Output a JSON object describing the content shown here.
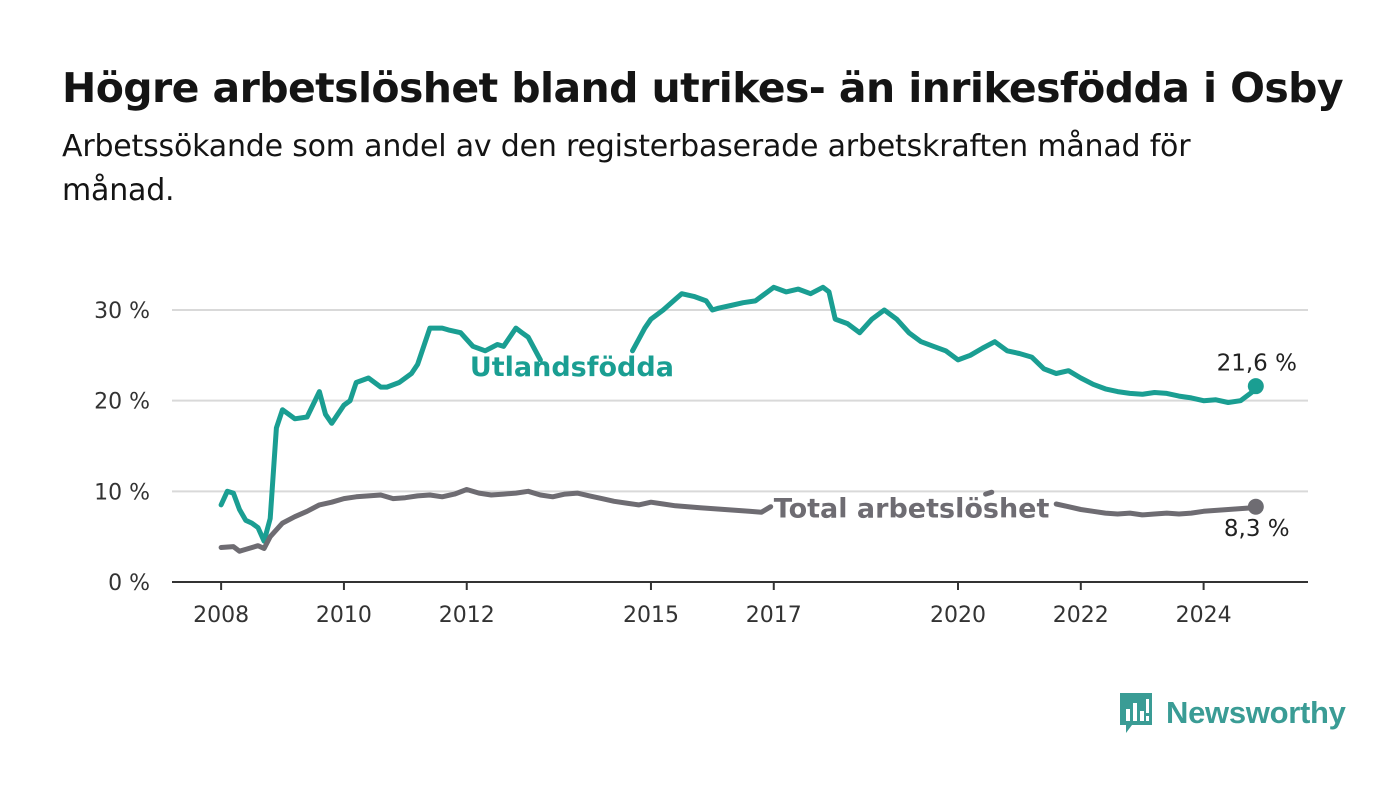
{
  "title": "Högre arbetslöshet bland utrikes- än inrikesfödda i Osby",
  "subtitle": "Arbetssökande som andel av den registerbaserade arbetskraften månad för månad.",
  "brand": {
    "name": "Newsworthy",
    "color": "#3a9c95",
    "icon": "bar-chart-speech-bubble-icon"
  },
  "chart_data": {
    "type": "line",
    "xlabel": "",
    "ylabel": "",
    "ylim": [
      0,
      30
    ],
    "yticks": [
      0,
      10,
      20,
      30
    ],
    "ytick_labels": [
      "0 %",
      "10 %",
      "20 %",
      "30 %"
    ],
    "xlim": [
      2007.2,
      2025.7
    ],
    "xticks": [
      2008,
      2010,
      2012,
      2015,
      2017,
      2020,
      2022,
      2024
    ],
    "xtick_labels": [
      "2008",
      "2010",
      "2012",
      "2015",
      "2017",
      "2020",
      "2022",
      "2024"
    ],
    "grid": true,
    "legend": "none",
    "series": [
      {
        "name": "Utlandsfödda",
        "color": "#1a9e92",
        "end_label": "21,6 %",
        "x": [
          2008.0,
          2008.1,
          2008.2,
          2008.3,
          2008.4,
          2008.5,
          2008.6,
          2008.7,
          2008.8,
          2008.9,
          2009.0,
          2009.1,
          2009.2,
          2009.4,
          2009.6,
          2009.7,
          2009.8,
          2010.0,
          2010.1,
          2010.2,
          2010.4,
          2010.6,
          2010.7,
          2010.9,
          2011.1,
          2011.2,
          2011.4,
          2011.6,
          2011.7,
          2011.9,
          2012.1,
          2012.3,
          2012.5,
          2012.6,
          2012.8,
          2012.9,
          2013.0,
          2013.2,
          2014.7,
          2014.9,
          2015.0,
          2015.2,
          2015.4,
          2015.5,
          2015.7,
          2015.9,
          2016.0,
          2016.1,
          2016.3,
          2016.5,
          2016.7,
          2016.9,
          2017.0,
          2017.2,
          2017.4,
          2017.6,
          2017.8,
          2017.9,
          2018.0,
          2018.2,
          2018.4,
          2018.6,
          2018.8,
          2019.0,
          2019.2,
          2019.4,
          2019.6,
          2019.8,
          2020.0,
          2020.2,
          2020.4,
          2020.6,
          2020.8,
          2021.0,
          2021.2,
          2021.4,
          2021.6,
          2021.8,
          2022.0,
          2022.2,
          2022.4,
          2022.6,
          2022.8,
          2023.0,
          2023.2,
          2023.4,
          2023.6,
          2023.8,
          2024.0,
          2024.2,
          2024.4,
          2024.6,
          2024.8,
          2024.85
        ],
        "values": [
          8.5,
          10.0,
          9.8,
          8.0,
          6.8,
          6.5,
          6.0,
          4.5,
          7.0,
          17.0,
          19.0,
          18.5,
          18.0,
          18.2,
          21.0,
          18.5,
          17.5,
          19.5,
          20.0,
          22.0,
          22.5,
          21.5,
          21.5,
          22.0,
          23.0,
          24.0,
          28.0,
          28.0,
          27.8,
          27.5,
          26.0,
          25.5,
          26.2,
          26.0,
          28.0,
          27.5,
          27.0,
          24.5,
          25.5,
          28.0,
          29.0,
          30.0,
          31.2,
          31.8,
          31.5,
          31.0,
          30.0,
          30.2,
          30.5,
          30.8,
          31.0,
          32.0,
          32.5,
          32.0,
          32.3,
          31.8,
          32.5,
          32.0,
          29.0,
          28.5,
          27.5,
          29.0,
          30.0,
          29.0,
          27.5,
          26.5,
          26.0,
          25.5,
          24.5,
          25.0,
          25.8,
          26.5,
          25.5,
          25.2,
          24.8,
          23.5,
          23.0,
          23.3,
          22.5,
          21.8,
          21.3,
          21.0,
          20.8,
          20.7,
          20.9,
          20.8,
          20.5,
          20.3,
          20.0,
          20.1,
          19.8,
          20.0,
          21.0,
          21.6
        ]
      },
      {
        "name": "Total arbetslöshet",
        "color": "#6e6c72",
        "end_label": "8,3 %",
        "x": [
          2008.0,
          2008.2,
          2008.3,
          2008.4,
          2008.6,
          2008.7,
          2008.8,
          2009.0,
          2009.2,
          2009.4,
          2009.6,
          2009.8,
          2010.0,
          2010.2,
          2010.4,
          2010.6,
          2010.8,
          2011.0,
          2011.2,
          2011.4,
          2011.6,
          2011.8,
          2012.0,
          2012.2,
          2012.4,
          2012.6,
          2012.8,
          2013.0,
          2013.2,
          2013.4,
          2013.6,
          2013.8,
          2014.0,
          2014.2,
          2014.4,
          2014.6,
          2014.8,
          2015.0,
          2015.2,
          2015.4,
          2015.6,
          2015.8,
          2016.0,
          2016.2,
          2016.4,
          2016.6,
          2016.8,
          2016.95,
          2020.45,
          2020.55,
          2021.6,
          2021.8,
          2022.0,
          2022.2,
          2022.4,
          2022.6,
          2022.8,
          2023.0,
          2023.2,
          2023.4,
          2023.6,
          2023.8,
          2024.0,
          2024.2,
          2024.4,
          2024.6,
          2024.8,
          2024.85
        ],
        "values": [
          3.8,
          3.9,
          3.4,
          3.6,
          4.0,
          3.7,
          5.0,
          6.5,
          7.2,
          7.8,
          8.5,
          8.8,
          9.2,
          9.4,
          9.5,
          9.6,
          9.2,
          9.3,
          9.5,
          9.6,
          9.4,
          9.7,
          10.2,
          9.8,
          9.6,
          9.7,
          9.8,
          10.0,
          9.6,
          9.4,
          9.7,
          9.8,
          9.5,
          9.2,
          8.9,
          8.7,
          8.5,
          8.8,
          8.6,
          8.4,
          8.3,
          8.2,
          8.1,
          8.0,
          7.9,
          7.8,
          7.7,
          8.3,
          9.7,
          9.9,
          8.6,
          8.3,
          8.0,
          7.8,
          7.6,
          7.5,
          7.6,
          7.4,
          7.5,
          7.6,
          7.5,
          7.6,
          7.8,
          7.9,
          8.0,
          8.1,
          8.2,
          8.3
        ]
      }
    ]
  }
}
